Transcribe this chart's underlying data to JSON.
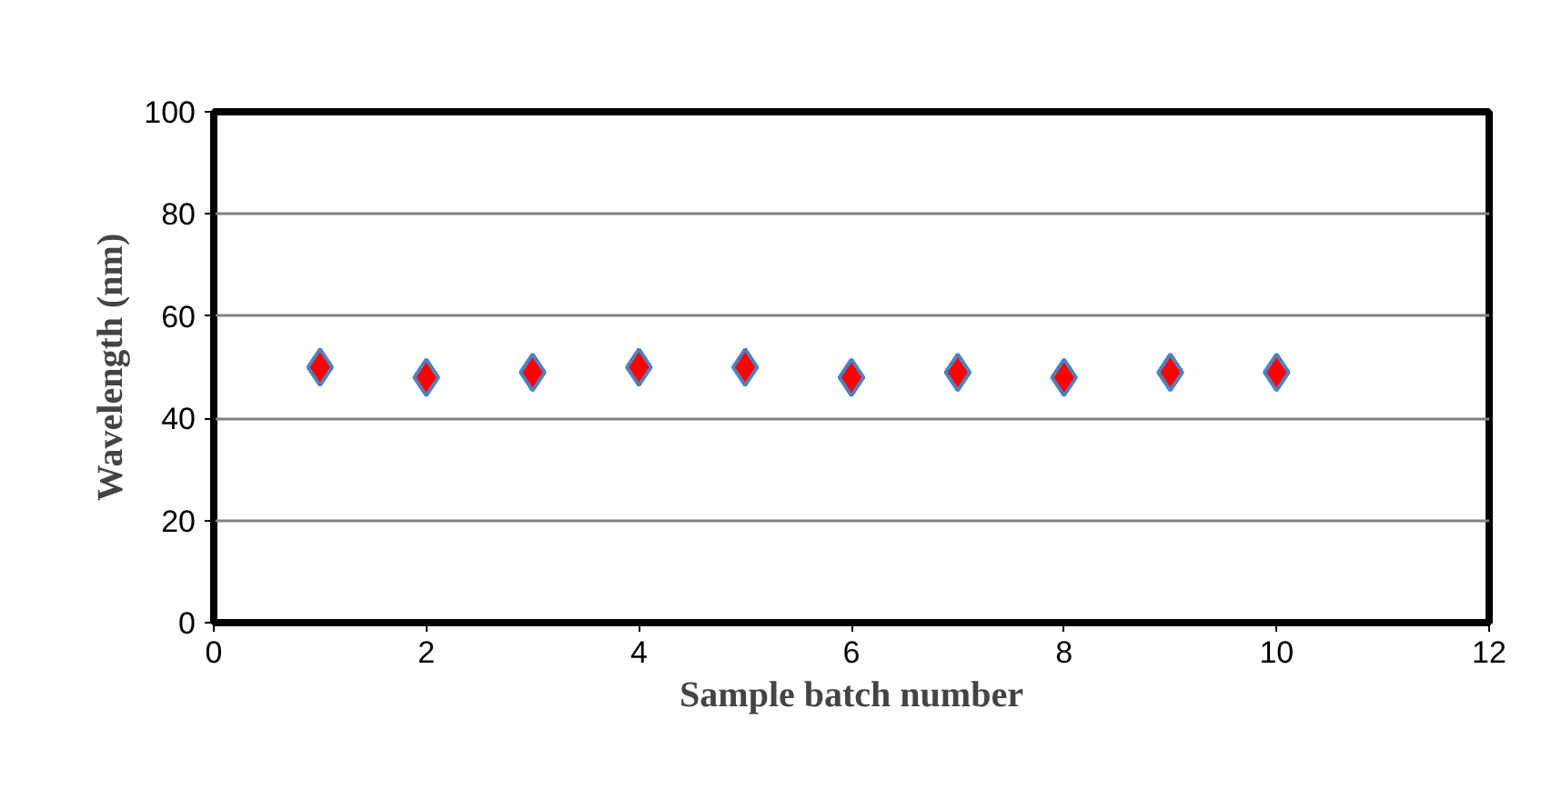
{
  "chart_data": {
    "type": "scatter",
    "xlabel": "Sample batch number",
    "ylabel": "Wavelength (nm)",
    "x": [
      1,
      2,
      3,
      4,
      5,
      6,
      7,
      8,
      9,
      10
    ],
    "series": [
      {
        "color": "#ff0000",
        "values": [
          50,
          48,
          49,
          50,
          50,
          48,
          49,
          48,
          49,
          49
        ]
      }
    ],
    "xlim": [
      0,
      12
    ],
    "xticks": [
      0,
      2,
      4,
      6,
      8,
      10,
      12
    ],
    "ylim": [
      0,
      100
    ],
    "yticks": [
      0,
      20,
      40,
      60,
      80,
      100
    ],
    "grid": "y",
    "marker": "diamond"
  }
}
